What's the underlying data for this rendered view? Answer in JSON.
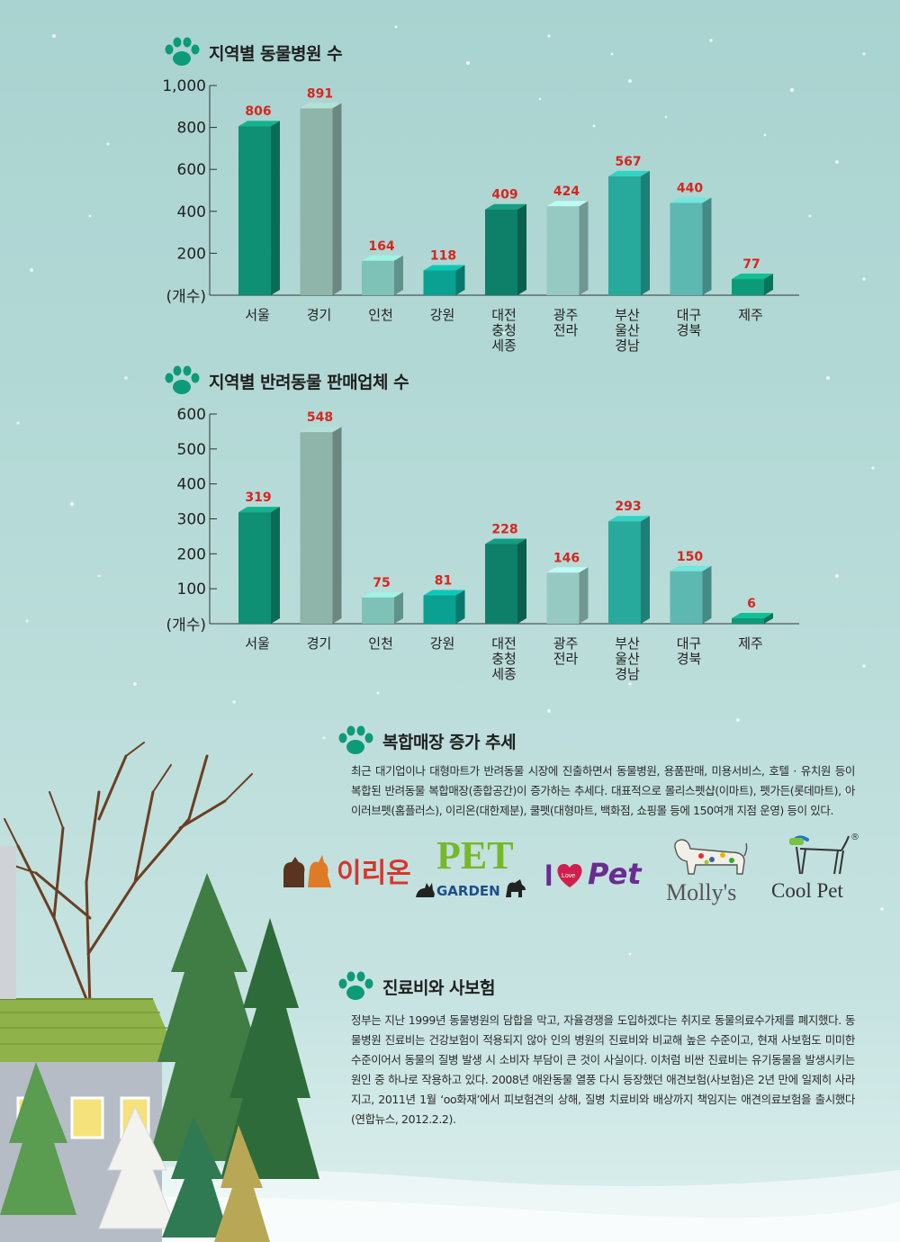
{
  "charts": [
    {
      "title": "지역별 동물병원 수",
      "unit_label": "(개수)"
    },
    {
      "title": "지역별 반려동물 판매업체 수",
      "unit_label": "(개수)"
    }
  ],
  "chart_data": [
    {
      "type": "bar",
      "title": "지역별 동물병원 수",
      "ylabel": "(개수)",
      "categories": [
        "서울",
        "경기",
        "인천",
        "강원",
        "대전\n충청\n세종",
        "광주\n전라",
        "부산\n울산\n경남",
        "대구\n경북",
        "제주"
      ],
      "values": [
        806,
        891,
        164,
        118,
        409,
        424,
        567,
        440,
        77
      ],
      "data_labels": [
        "806",
        "891",
        "164",
        "118",
        "409",
        "424",
        "567",
        "440",
        "77"
      ],
      "yticks": [
        "1,000",
        "800",
        "600",
        "400",
        "200"
      ],
      "ytick_values": [
        1000,
        800,
        600,
        400,
        200
      ],
      "ylim": [
        0,
        1000
      ],
      "bar_colors": [
        "#0f8f73",
        "#8fb5aa",
        "#7ec2b7",
        "#0aa092",
        "#0e7f69",
        "#97c9c3",
        "#27a99c",
        "#5cb8b1",
        "#0d9a78"
      ],
      "label_color": "#d7261e",
      "grid": false
    },
    {
      "type": "bar",
      "title": "지역별 반려동물 판매업체 수",
      "ylabel": "(개수)",
      "categories": [
        "서울",
        "경기",
        "인천",
        "강원",
        "대전\n충청\n세종",
        "광주\n전라",
        "부산\n울산\n경남",
        "대구\n경북",
        "제주"
      ],
      "values": [
        319,
        548,
        75,
        81,
        228,
        146,
        293,
        150,
        6
      ],
      "data_labels": [
        "319",
        "548",
        "75",
        "81",
        "228",
        "146",
        "293",
        "150",
        "6"
      ],
      "yticks": [
        "600",
        "500",
        "400",
        "300",
        "200",
        "100"
      ],
      "ytick_values": [
        600,
        500,
        400,
        300,
        200,
        100
      ],
      "ylim": [
        0,
        600
      ],
      "bar_colors": [
        "#0f8f73",
        "#8fb5aa",
        "#7ec2b7",
        "#0aa092",
        "#0e7f69",
        "#97c9c3",
        "#27a99c",
        "#5cb8b1",
        "#0d9a78"
      ],
      "label_color": "#d7261e",
      "grid": false
    }
  ],
  "section3": {
    "title": "복합매장 증가 추세",
    "body": "최근 대기업이나 대형마트가 반려동물 시장에 진출하면서 동물병원, 용품판매, 미용서비스, 호텔 · 유치원 등이 복합된 반려동물 복합매장(종합공간)이 증가하는 추세다. 대표적으로 몰리스펫샵(이마트), 펫가든(롯데마트), 아이러브펫(홈플러스), 이리온(대한제분), 쿨펫(대형마트, 백화점, 쇼핑몰 등에 150여개 지점 운영) 등이 있다."
  },
  "logos": {
    "ilion": "이리온",
    "pet": "PET",
    "garden": "GARDEN",
    "ilove_love": "Love",
    "ilove_pet": "Pet",
    "mollys": "Molly's",
    "coolpet": "Cool Pet",
    "registered": "®"
  },
  "section4": {
    "title": "진료비와 사보험",
    "body": "정부는 지난 1999년 동물병원의 담합을 막고, 자율경쟁을 도입하겠다는 취지로 동물의료수가제를 폐지했다. 동물병원 진료비는 건강보험이 적용되지 않아 인의 병원의 진료비와 비교해 높은 수준이고, 현재 사보험도 미미한 수준이어서 동물의 질병 발생 시 소비자 부담이 큰 것이 사실이다. 이처럼 비싼 진료비는 유기동물을 발생시키는 원인 중 하나로 작용하고 있다. 2008년 애완동물 열풍 다시 등장했던 애견보험(사보험)은 2년 만에 일제히 사라지고, 2011년 1월 ‘oo화재’에서 피보험견의 상해, 질병 치료비와 배상까지 책임지는 애견의료보험을 출시했다(연합뉴스, 2012.2.2)."
  },
  "colors": {
    "background": "#b7dbd8",
    "paw": "#0d9a78",
    "label_red": "#d7261e"
  }
}
